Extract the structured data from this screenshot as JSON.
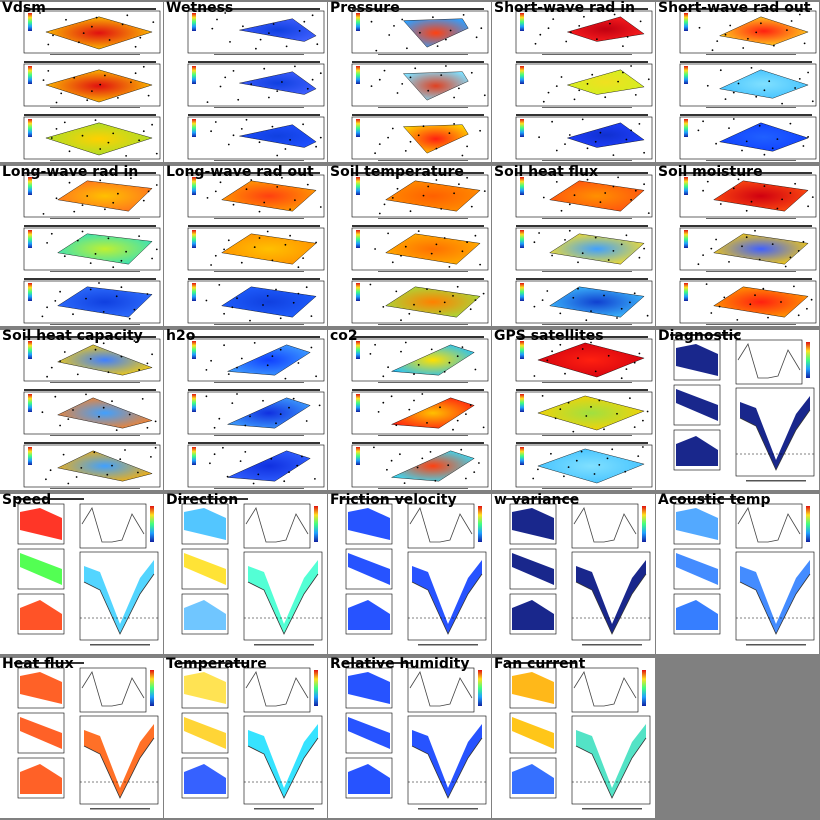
{
  "page": {
    "background": "#808080"
  },
  "panels": [
    {
      "title": "Vdsm",
      "kind": "map3",
      "scheme": "rainbow-center"
    },
    {
      "title": "Wetness",
      "kind": "map3",
      "scheme": "blue-strip"
    },
    {
      "title": "Pressure",
      "kind": "map3",
      "scheme": "pressure"
    },
    {
      "title": "Short-wave rad in",
      "kind": "map3",
      "scheme": "sw-in"
    },
    {
      "title": "Short-wave rad out",
      "kind": "map3",
      "scheme": "sw-out"
    },
    {
      "title": "Long-wave rad in",
      "kind": "map3",
      "scheme": "lw-in"
    },
    {
      "title": "Long-wave rad out",
      "kind": "map3",
      "scheme": "lw-out"
    },
    {
      "title": "Soil temperature",
      "kind": "map3",
      "scheme": "soil-temp"
    },
    {
      "title": "Soil heat flux",
      "kind": "map3",
      "scheme": "soil-flux"
    },
    {
      "title": "Soil moisture",
      "kind": "map3",
      "scheme": "soil-moist"
    },
    {
      "title": "Soil heat capacity",
      "kind": "map3",
      "scheme": "heat-cap"
    },
    {
      "title": "h2o",
      "kind": "map3",
      "scheme": "h2o"
    },
    {
      "title": "co2",
      "kind": "map3",
      "scheme": "co2"
    },
    {
      "title": "GPS satellites",
      "kind": "map3",
      "scheme": "gps"
    },
    {
      "title": "Diagnostic",
      "kind": "transect",
      "scheme": "diag"
    },
    {
      "title": "Speed",
      "kind": "transect",
      "scheme": "speed"
    },
    {
      "title": "Direction",
      "kind": "transect",
      "scheme": "direction"
    },
    {
      "title": "Friction velocity",
      "kind": "transect",
      "scheme": "friction"
    },
    {
      "title": "w variance",
      "kind": "transect",
      "scheme": "wvar"
    },
    {
      "title": "Acoustic temp",
      "kind": "transect",
      "scheme": "acoustic"
    },
    {
      "title": "Heat flux",
      "kind": "transect",
      "scheme": "heatflux"
    },
    {
      "title": "Temperature",
      "kind": "transect",
      "scheme": "temperature"
    },
    {
      "title": "Relative humidity",
      "kind": "transect",
      "scheme": "rh"
    },
    {
      "title": "Fan current",
      "kind": "transect",
      "scheme": "fan"
    }
  ],
  "chart_data": {
    "type": "heatmap"
  }
}
